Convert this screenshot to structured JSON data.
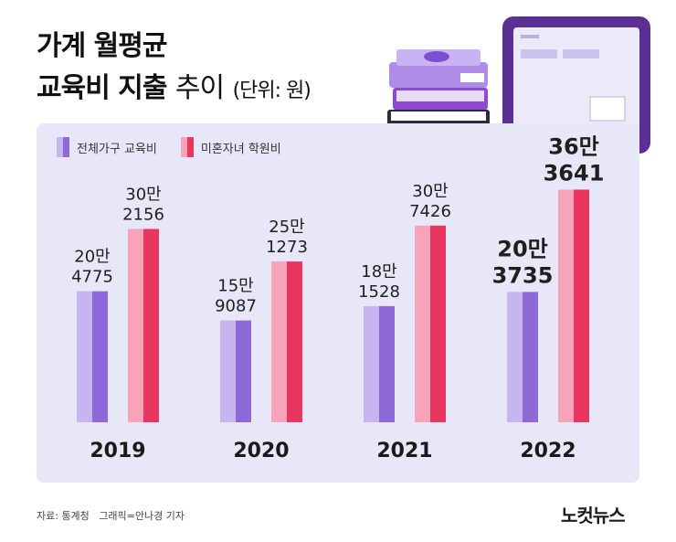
{
  "header": {
    "title_line1": "가계 월평균",
    "title_line2_bold": "교육비 지출",
    "title_line2_light": "추이",
    "title_unit": "(단위: 원)"
  },
  "legend": {
    "series1": "전체가구 교육비",
    "series2": "미혼자녀 학원비"
  },
  "footer": {
    "source": "자료: 통계청",
    "credit": "그래픽=안나경 기자",
    "brand": "노컷뉴스"
  },
  "colors": {
    "series1_light": "#c7b5f0",
    "series1_dark": "#8e6ad8",
    "series2_light": "#f7a3b9",
    "series2_dark": "#e8365e",
    "panel": "#e8e7f8"
  },
  "chart_data": {
    "type": "bar",
    "title": "가계 월평균 교육비 지출 추이",
    "unit": "원",
    "categories": [
      "2019",
      "2020",
      "2021",
      "2022"
    ],
    "ylim": [
      0,
      400000
    ],
    "series": [
      {
        "name": "전체가구 교육비",
        "values": [
          204775,
          159087,
          181528,
          203735
        ],
        "labels": [
          [
            "20만",
            "4775"
          ],
          [
            "15만",
            "9087"
          ],
          [
            "18만",
            "1528"
          ],
          [
            "20만",
            "3735"
          ]
        ]
      },
      {
        "name": "미혼자녀 학원비",
        "values": [
          302156,
          251273,
          307426,
          363641
        ],
        "labels": [
          [
            "30만",
            "2156"
          ],
          [
            "25만",
            "1273"
          ],
          [
            "30만",
            "7426"
          ],
          [
            "36만",
            "3641"
          ]
        ]
      }
    ]
  }
}
